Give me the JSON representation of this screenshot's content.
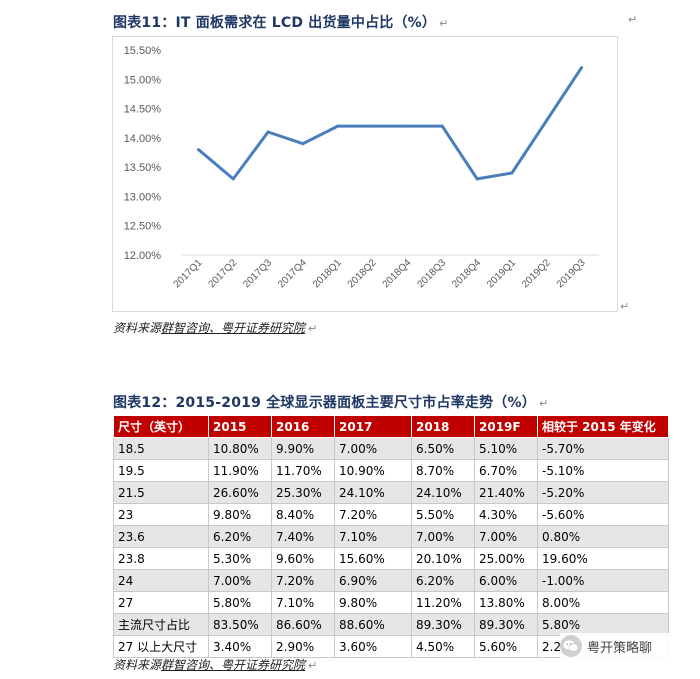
{
  "figure1": {
    "title": "图表11：IT 面板需求在 LCD 出货量中占比（%）",
    "source_prefix": "资料来源",
    "source_links": "群智咨询、粤开证券研究院"
  },
  "chart_data": {
    "type": "line",
    "title": "",
    "xlabel": "",
    "ylabel": "",
    "categories": [
      "2017Q1",
      "2017Q2",
      "2017Q3",
      "2017Q4",
      "2018Q1",
      "2018Q2",
      "2018Q4",
      "2018Q3",
      "2018Q4",
      "2019Q1",
      "2019Q2",
      "2019Q3"
    ],
    "series": [
      {
        "values": [
          13.8,
          13.3,
          14.1,
          13.9,
          14.2,
          14.2,
          14.2,
          14.2,
          13.3,
          13.4,
          14.3,
          15.2
        ]
      }
    ],
    "ylim": [
      12.0,
      15.5
    ],
    "yticks": [
      "15.50%",
      "15.00%",
      "14.50%",
      "14.00%",
      "13.50%",
      "13.00%",
      "12.50%",
      "12.00%"
    ],
    "line_color": "#4a7ebb",
    "grid": false,
    "legend": "none"
  },
  "figure2": {
    "title": "图表12：2015-2019 全球显示器面板主要尺寸市占率走势（%）",
    "source_prefix": "资料来源",
    "source_links": "群智咨询、粤开证券研究院",
    "header_color": "#c00000",
    "headers": [
      "尺寸（英寸）",
      "2015",
      "2016",
      "2017",
      "2018",
      "2019F",
      "相较于 2015 年变化"
    ],
    "rows": [
      [
        "18.5",
        "10.80%",
        "9.90%",
        "7.00%",
        "6.50%",
        "5.10%",
        "-5.70%"
      ],
      [
        "19.5",
        "11.90%",
        "11.70%",
        "10.90%",
        "8.70%",
        "6.70%",
        "-5.10%"
      ],
      [
        "21.5",
        "26.60%",
        "25.30%",
        "24.10%",
        "24.10%",
        "21.40%",
        "-5.20%"
      ],
      [
        "23",
        "9.80%",
        "8.40%",
        "7.20%",
        "5.50%",
        "4.30%",
        "-5.60%"
      ],
      [
        "23.6",
        "6.20%",
        "7.40%",
        "7.10%",
        "7.00%",
        "7.00%",
        "0.80%"
      ],
      [
        "23.8",
        "5.30%",
        "9.60%",
        "15.60%",
        "20.10%",
        "25.00%",
        "19.60%"
      ],
      [
        "24",
        "7.00%",
        "7.20%",
        "6.90%",
        "6.20%",
        "6.00%",
        "-1.00%"
      ],
      [
        "27",
        "5.80%",
        "7.10%",
        "9.80%",
        "11.20%",
        "13.80%",
        "8.00%"
      ],
      [
        "主流尺寸占比",
        "83.50%",
        "86.60%",
        "88.60%",
        "89.30%",
        "89.30%",
        "5.80%"
      ],
      [
        "27 以上大尺寸",
        "3.40%",
        "2.90%",
        "3.60%",
        "4.50%",
        "5.60%",
        "2.20%"
      ]
    ]
  },
  "watermark": {
    "icon": "wechat-icon",
    "text": "粤开策略聊"
  },
  "return_mark": "↵"
}
